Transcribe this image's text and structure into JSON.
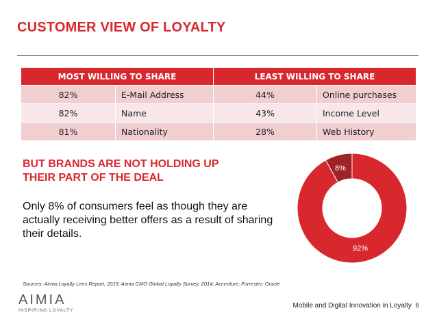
{
  "slide": {
    "title": "CUSTOMER VIEW OF LOYALTY",
    "subheading_line1": "BUT BRANDS ARE NOT HOLDING UP",
    "subheading_line2": "THEIR PART OF THE DEAL",
    "body": "Only 8% of consumers feel as though they are actually receiving better offers as a result of sharing their details.",
    "sources": "Sources: Aimia Loyalty Lens Report, 2015; Aimia CMO Global Loyalty Survey, 2014; Accenture; Forrester; Oracle",
    "footer_text": "Mobile and Digital Innovation in Loyalty",
    "page_number": "6"
  },
  "logo": {
    "word": "AIMIA",
    "tagline": "INSPIRING LOYALTY"
  },
  "table": {
    "headers": [
      "MOST WILLING TO SHARE",
      "LEAST WILLING TO SHARE"
    ],
    "rows": [
      {
        "most_pct": "82%",
        "most_item": "E-Mail Address",
        "least_pct": "44%",
        "least_item": "Online purchases"
      },
      {
        "most_pct": "82%",
        "most_item": "Name",
        "least_pct": "43%",
        "least_item": "Income Level"
      },
      {
        "most_pct": "81%",
        "most_item": "Nationality",
        "least_pct": "28%",
        "least_item": "Web History"
      }
    ]
  },
  "chart_data": {
    "type": "pie",
    "variant": "donut",
    "categories": [
      "",
      ""
    ],
    "values": [
      8,
      92
    ],
    "labels": [
      "8%",
      "92%"
    ],
    "colors": [
      "#9e2227",
      "#d9272e"
    ]
  },
  "colors": {
    "accent": "#d9272e",
    "row_dark": "#f1cfd0",
    "row_light": "#f8e7e8"
  }
}
